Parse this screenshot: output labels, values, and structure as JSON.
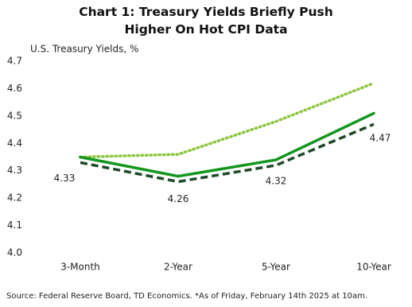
{
  "chart_data": {
    "type": "line",
    "title": "Chart 1: Treasury Yields Briefly Push Higher On Hot CPI Data",
    "y_label": "U.S. Treasury Yields, %",
    "source": "Source: Federal Reserve Board, TD Economics. *As of Friday, February 14th 2025 at 10am.",
    "categories": [
      "3-Month",
      "2-Year",
      "5-Year",
      "10-Year"
    ],
    "series": [
      {
        "color": "#8cc63f",
        "style": "dotted",
        "values": [
          4.35,
          4.36,
          4.48,
          4.62
        ]
      },
      {
        "color": "#13961f",
        "style": "solid",
        "values": [
          4.35,
          4.28,
          4.34,
          4.51
        ]
      },
      {
        "color": "#1f4a2a",
        "style": "dashed",
        "values": [
          4.33,
          4.26,
          4.32,
          4.47
        ],
        "data_labels": true
      }
    ],
    "ylim": [
      4.0,
      4.7
    ],
    "yticks": [
      {
        "value": 4,
        "label": "4.0"
      },
      4.1,
      4.2,
      4.3,
      4.4,
      4.5,
      4.6,
      4.7
    ],
    "grid": false
  }
}
